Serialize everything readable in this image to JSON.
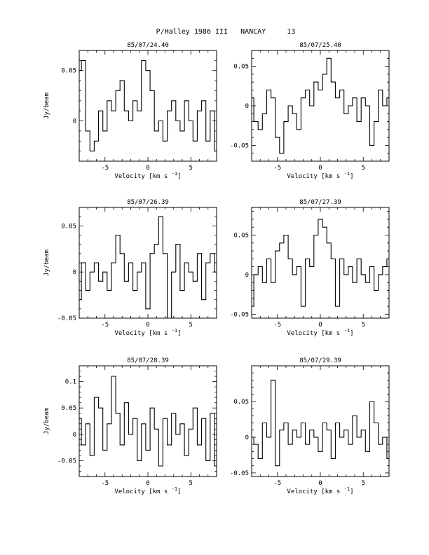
{
  "page_title": "P/Halley 1986 III   NANCAY     13",
  "chart_data": [
    {
      "type": "line",
      "title": "85/07/24.40",
      "xlabel": "Velocity [km s",
      "xlabel_sup": "-1",
      "xlabel_close": "]",
      "ylabel": "Jy/beam",
      "xlim": [
        -8,
        8
      ],
      "ylim": [
        -0.04,
        0.07
      ],
      "xticks": [
        -5,
        0,
        5
      ],
      "yticks": [
        0,
        0.05
      ],
      "xtick_labels": [
        "-5",
        "0",
        "5"
      ],
      "ytick_labels": [
        "0",
        "0.05"
      ],
      "x": [
        -8.0,
        -7.5,
        -7.0,
        -6.5,
        -6.0,
        -5.5,
        -5.0,
        -4.5,
        -4.0,
        -3.5,
        -3.0,
        -2.5,
        -2.0,
        -1.5,
        -1.0,
        -0.5,
        0.0,
        0.5,
        1.0,
        1.5,
        2.0,
        2.5,
        3.0,
        3.5,
        4.0,
        4.5,
        5.0,
        5.5,
        6.0,
        6.5,
        7.0,
        7.5,
        8.0
      ],
      "values": [
        0.05,
        0.06,
        -0.01,
        -0.03,
        -0.02,
        0.01,
        -0.01,
        0.02,
        0.01,
        0.03,
        0.04,
        0.01,
        0.0,
        0.02,
        0.01,
        0.06,
        0.05,
        0.03,
        -0.01,
        0.0,
        -0.02,
        0.01,
        0.02,
        0.0,
        -0.01,
        0.02,
        0.0,
        -0.02,
        0.01,
        0.02,
        -0.02,
        0.01,
        -0.03
      ]
    },
    {
      "type": "line",
      "title": "85/07/25.40",
      "xlabel": "Velocity [km s",
      "xlabel_sup": "-1",
      "xlabel_close": "]",
      "ylabel": "",
      "xlim": [
        -8,
        8
      ],
      "ylim": [
        -0.07,
        0.07
      ],
      "xticks": [
        -5,
        0,
        5
      ],
      "yticks": [
        -0.05,
        0,
        0.05
      ],
      "xtick_labels": [
        "-5",
        "0",
        "5"
      ],
      "ytick_labels": [
        "-0.05",
        "0",
        "0.05"
      ],
      "x": [
        -8.0,
        -7.5,
        -7.0,
        -6.5,
        -6.0,
        -5.5,
        -5.0,
        -4.5,
        -4.0,
        -3.5,
        -3.0,
        -2.5,
        -2.0,
        -1.5,
        -1.0,
        -0.5,
        0.0,
        0.5,
        1.0,
        1.5,
        2.0,
        2.5,
        3.0,
        3.5,
        4.0,
        4.5,
        5.0,
        5.5,
        6.0,
        6.5,
        7.0,
        7.5,
        8.0
      ],
      "values": [
        0.01,
        -0.02,
        -0.03,
        -0.01,
        0.02,
        0.01,
        -0.04,
        -0.06,
        -0.02,
        0.0,
        -0.01,
        -0.03,
        0.01,
        0.02,
        0.0,
        0.03,
        0.02,
        0.04,
        0.06,
        0.03,
        0.01,
        0.02,
        -0.01,
        0.0,
        0.01,
        -0.02,
        0.01,
        0.0,
        -0.05,
        -0.02,
        0.02,
        0.0,
        0.01
      ]
    },
    {
      "type": "line",
      "title": "85/07/26.39",
      "xlabel": "Velocity [km s",
      "xlabel_sup": "-1",
      "xlabel_close": "]",
      "ylabel": "Jy/beam",
      "xlim": [
        -8,
        8
      ],
      "ylim": [
        -0.05,
        0.07
      ],
      "xticks": [
        -5,
        0,
        5
      ],
      "yticks": [
        -0.05,
        0,
        0.05
      ],
      "xtick_labels": [
        "-5",
        "0",
        "5"
      ],
      "ytick_labels": [
        "-0.05",
        "0",
        "0.05"
      ],
      "x": [
        -8.0,
        -7.5,
        -7.0,
        -6.5,
        -6.0,
        -5.5,
        -5.0,
        -4.5,
        -4.0,
        -3.5,
        -3.0,
        -2.5,
        -2.0,
        -1.5,
        -1.0,
        -0.5,
        0.0,
        0.5,
        1.0,
        1.5,
        2.0,
        2.5,
        3.0,
        3.5,
        4.0,
        4.5,
        5.0,
        5.5,
        6.0,
        6.5,
        7.0,
        7.5,
        8.0
      ],
      "values": [
        -0.03,
        0.01,
        -0.02,
        0.0,
        0.01,
        -0.01,
        0.0,
        -0.02,
        0.01,
        0.04,
        0.02,
        -0.01,
        0.01,
        -0.02,
        0.0,
        0.01,
        -0.04,
        0.02,
        0.03,
        0.06,
        0.02,
        -0.05,
        0.0,
        0.03,
        -0.02,
        0.01,
        0.0,
        -0.01,
        0.02,
        -0.03,
        0.01,
        0.02,
        0.0
      ]
    },
    {
      "type": "line",
      "title": "85/07/27.39",
      "xlabel": "Velocity [km s",
      "xlabel_sup": "-1",
      "xlabel_close": "]",
      "ylabel": "",
      "xlim": [
        -8,
        8
      ],
      "ylim": [
        -0.055,
        0.085
      ],
      "xticks": [
        -5,
        0,
        5
      ],
      "yticks": [
        -0.05,
        0,
        0.05
      ],
      "xtick_labels": [
        "-5",
        "0",
        "5"
      ],
      "ytick_labels": [
        "-0.05",
        "0",
        "0.05"
      ],
      "x": [
        -8.0,
        -7.5,
        -7.0,
        -6.5,
        -6.0,
        -5.5,
        -5.0,
        -4.5,
        -4.0,
        -3.5,
        -3.0,
        -2.5,
        -2.0,
        -1.5,
        -1.0,
        -0.5,
        0.0,
        0.5,
        1.0,
        1.5,
        2.0,
        2.5,
        3.0,
        3.5,
        4.0,
        4.5,
        5.0,
        5.5,
        6.0,
        6.5,
        7.0,
        7.5,
        8.0
      ],
      "values": [
        -0.04,
        0.0,
        0.01,
        -0.01,
        0.02,
        -0.01,
        0.03,
        0.04,
        0.05,
        0.02,
        0.0,
        0.01,
        -0.04,
        0.02,
        0.01,
        0.05,
        0.07,
        0.06,
        0.04,
        0.02,
        -0.04,
        0.02,
        0.0,
        0.01,
        -0.01,
        0.02,
        0.0,
        -0.01,
        0.01,
        -0.02,
        0.0,
        0.01,
        0.02
      ]
    },
    {
      "type": "line",
      "title": "85/07/28.39",
      "xlabel": "Velocity [km s",
      "xlabel_sup": "-1",
      "xlabel_close": "]",
      "ylabel": "Jy/beam",
      "xlim": [
        -8,
        8
      ],
      "ylim": [
        -0.08,
        0.13
      ],
      "xticks": [
        -5,
        0,
        5
      ],
      "yticks": [
        -0.05,
        0,
        0.05,
        0.1
      ],
      "xtick_labels": [
        "-5",
        "0",
        "5"
      ],
      "ytick_labels": [
        "-0.05",
        "0",
        "0.05",
        "0.1"
      ],
      "x": [
        -8.0,
        -7.5,
        -7.0,
        -6.5,
        -6.0,
        -5.5,
        -5.0,
        -4.5,
        -4.0,
        -3.5,
        -3.0,
        -2.5,
        -2.0,
        -1.5,
        -1.0,
        -0.5,
        0.0,
        0.5,
        1.0,
        1.5,
        2.0,
        2.5,
        3.0,
        3.5,
        4.0,
        4.5,
        5.0,
        5.5,
        6.0,
        6.5,
        7.0,
        7.5,
        8.0
      ],
      "values": [
        0.03,
        -0.02,
        0.02,
        -0.04,
        0.07,
        0.05,
        -0.03,
        0.02,
        0.11,
        0.04,
        -0.02,
        0.06,
        0.0,
        0.03,
        -0.05,
        0.02,
        -0.03,
        0.05,
        0.01,
        -0.06,
        0.03,
        -0.02,
        0.04,
        0.0,
        0.02,
        -0.04,
        0.01,
        0.05,
        -0.02,
        0.03,
        -0.05,
        0.04,
        -0.06
      ]
    },
    {
      "type": "line",
      "title": "85/07/29.39",
      "xlabel": "Velocity [km s",
      "xlabel_sup": "-1",
      "xlabel_close": "]",
      "ylabel": "",
      "xlim": [
        -8,
        8
      ],
      "ylim": [
        -0.055,
        0.1
      ],
      "xticks": [
        -5,
        0,
        5
      ],
      "yticks": [
        -0.05,
        0,
        0.05
      ],
      "xtick_labels": [
        "-5",
        "0",
        "5"
      ],
      "ytick_labels": [
        "-0.05",
        "0",
        "0.05"
      ],
      "x": [
        -8.0,
        -7.5,
        -7.0,
        -6.5,
        -6.0,
        -5.5,
        -5.0,
        -4.5,
        -4.0,
        -3.5,
        -3.0,
        -2.5,
        -2.0,
        -1.5,
        -1.0,
        -0.5,
        0.0,
        0.5,
        1.0,
        1.5,
        2.0,
        2.5,
        3.0,
        3.5,
        4.0,
        4.5,
        5.0,
        5.5,
        6.0,
        6.5,
        7.0,
        7.5,
        8.0
      ],
      "values": [
        0.0,
        -0.01,
        -0.03,
        0.02,
        0.0,
        0.08,
        -0.04,
        0.01,
        0.02,
        -0.01,
        0.01,
        0.0,
        0.02,
        -0.01,
        0.01,
        0.0,
        -0.02,
        0.02,
        0.01,
        -0.03,
        0.02,
        0.0,
        0.01,
        -0.01,
        0.03,
        0.0,
        0.01,
        -0.02,
        0.05,
        0.02,
        -0.01,
        0.0,
        -0.03
      ]
    }
  ]
}
